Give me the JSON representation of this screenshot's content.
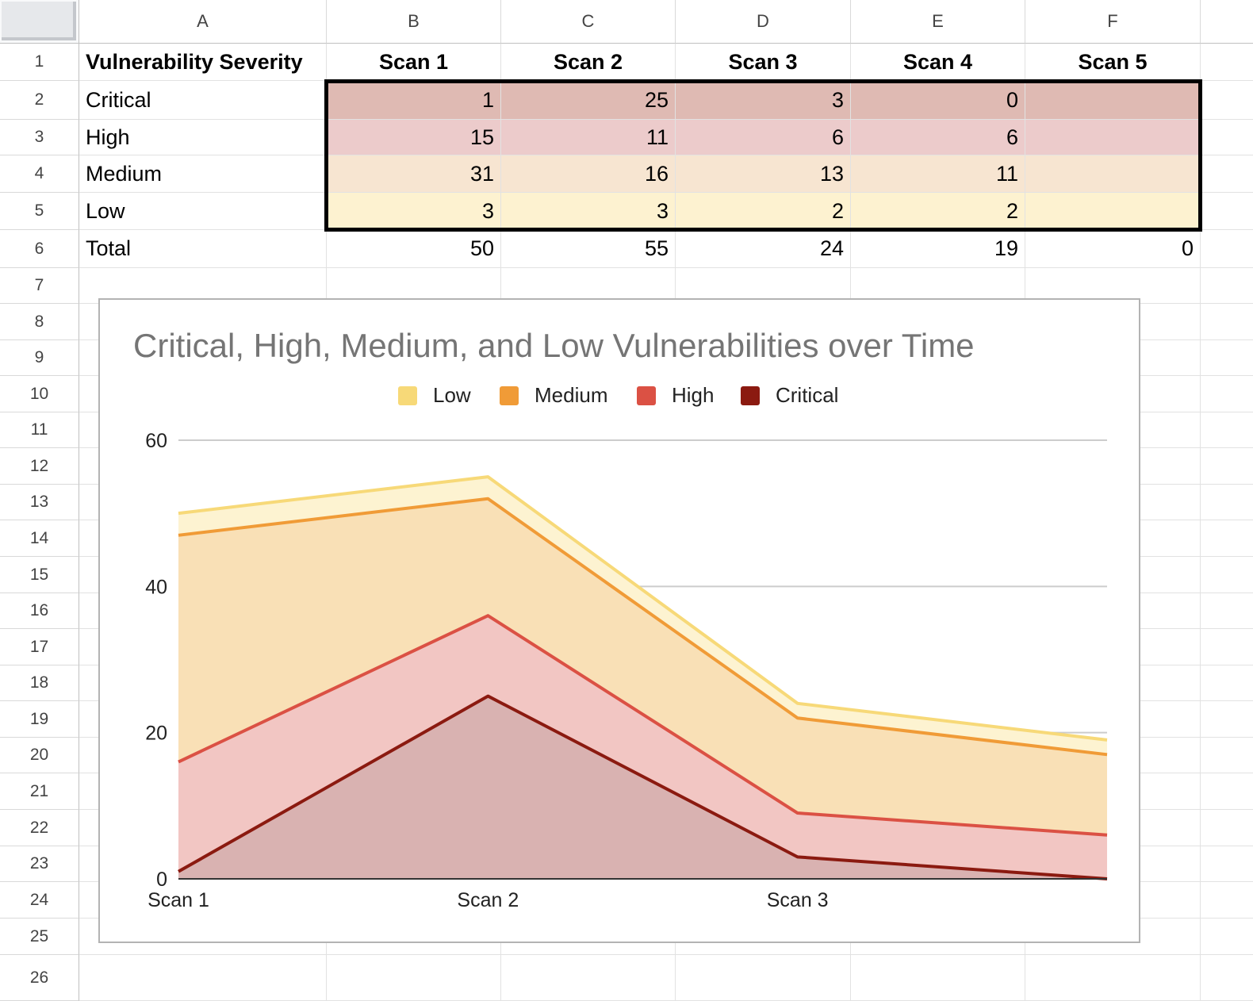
{
  "columns": [
    "A",
    "B",
    "C",
    "D",
    "E",
    "F"
  ],
  "rows": [
    "1",
    "2",
    "3",
    "4",
    "5",
    "6",
    "7",
    "8",
    "9",
    "10",
    "11",
    "12",
    "13",
    "14",
    "15",
    "16",
    "17",
    "18",
    "19",
    "20",
    "21",
    "22",
    "23",
    "24",
    "25",
    "26"
  ],
  "table": {
    "header": [
      "Vulnerability Severity",
      "Scan 1",
      "Scan 2",
      "Scan 3",
      "Scan 4",
      "Scan 5"
    ],
    "data": [
      {
        "label": "Critical",
        "values": [
          "1",
          "25",
          "3",
          "0",
          ""
        ],
        "fill": "#dfbab3"
      },
      {
        "label": "High",
        "values": [
          "15",
          "11",
          "6",
          "6",
          ""
        ],
        "fill": "#eccbcb"
      },
      {
        "label": "Medium",
        "values": [
          "31",
          "16",
          "13",
          "11",
          ""
        ],
        "fill": "#f7e5d1"
      },
      {
        "label": "Low",
        "values": [
          "3",
          "3",
          "2",
          "2",
          ""
        ],
        "fill": "#fdf2d0"
      }
    ],
    "total": {
      "label": "Total",
      "values": [
        "50",
        "55",
        "24",
        "19",
        "0"
      ]
    }
  },
  "chart_data": {
    "type": "area",
    "stacked": true,
    "title": "Critical, High, Medium, and Low Vulnerabilities over Time",
    "categories": [
      "Scan 1",
      "Scan 2",
      "Scan 3",
      "Scan 4"
    ],
    "x_tick_labels": [
      "Scan 1",
      "Scan 2",
      "Scan 3"
    ],
    "ylim": [
      0,
      60
    ],
    "y_ticks": [
      0,
      20,
      40,
      60
    ],
    "grid": true,
    "legend_position": "top",
    "series": [
      {
        "name": "Critical",
        "values": [
          1,
          25,
          3,
          0
        ],
        "color": "#8b1a10",
        "fill": "#d9b2b1"
      },
      {
        "name": "High",
        "values": [
          15,
          11,
          6,
          6
        ],
        "color": "#db5144",
        "fill": "#f2c6c3"
      },
      {
        "name": "Medium",
        "values": [
          31,
          16,
          13,
          11
        ],
        "color": "#f09b37",
        "fill": "#f9e0b6"
      },
      {
        "name": "Low",
        "values": [
          3,
          3,
          2,
          2
        ],
        "color": "#f7d978",
        "fill": "#fdf3d1"
      }
    ],
    "legend_order": [
      "Low",
      "Medium",
      "High",
      "Critical"
    ]
  }
}
